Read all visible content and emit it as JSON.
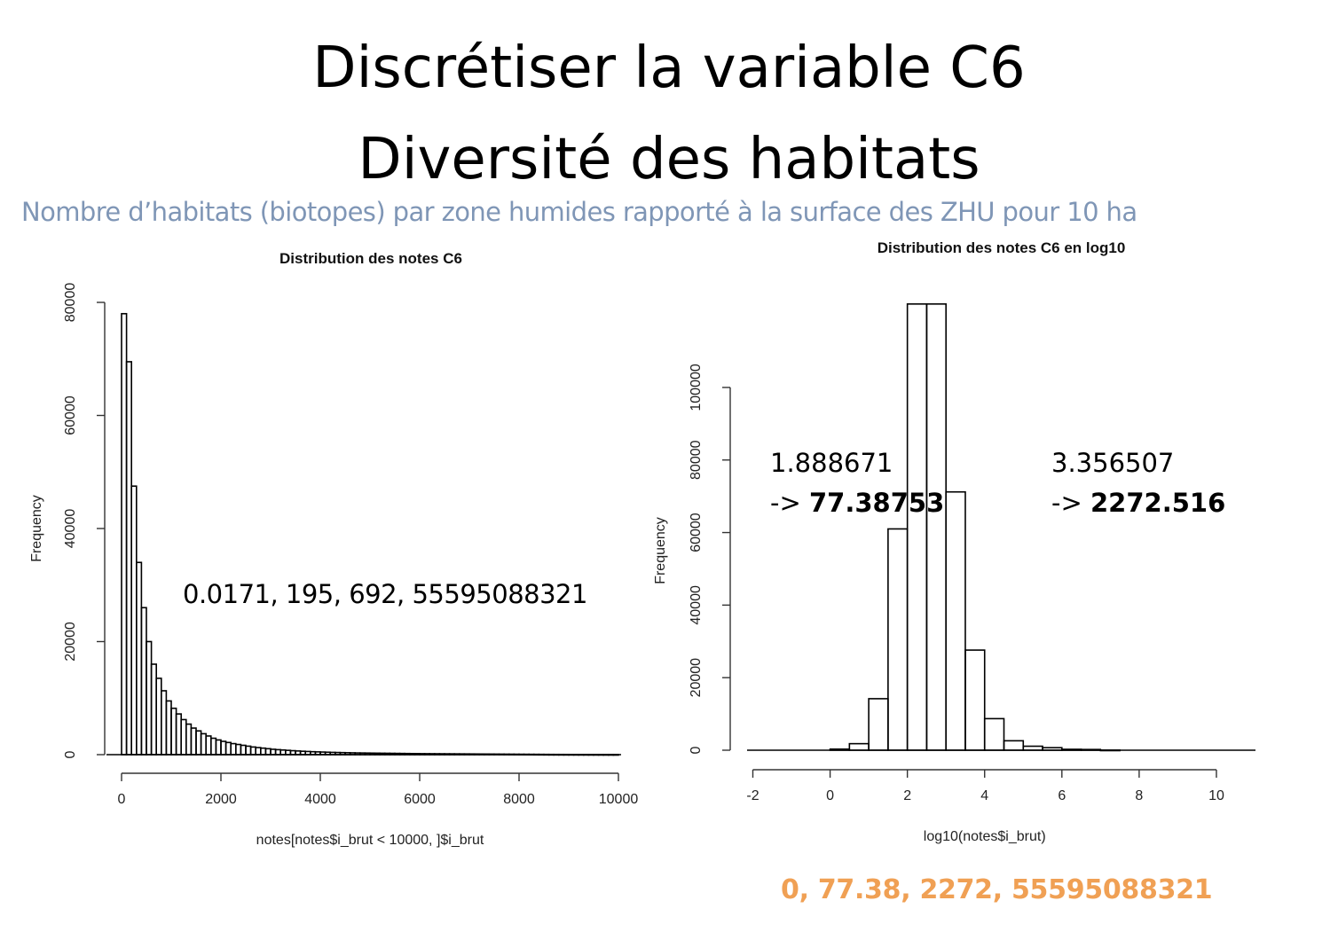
{
  "slide": {
    "title_line1": "Discrétiser la variable C6",
    "title_line2": "Diversité des habitats",
    "subtitle": "Nombre d’habitats (biotopes) par zone humides rapporté à la surface des ZHU pour 10 ha"
  },
  "annotations": {
    "raw_quantiles": "0.0171, 195, 692, 55595088321",
    "cut1_log": "1.888671",
    "cut1_arrow": "-> ",
    "cut1_value": "77.38753",
    "cut2_log": "3.356507",
    "cut2_arrow": "-> ",
    "cut2_value": "2272.516",
    "log_summary": "0, 77.38, 2272, 55595088321",
    "log_summary_color": "#f0a054"
  },
  "chart_data": [
    {
      "type": "bar",
      "title": "Distribution des notes C6",
      "xlabel": "notes[notes$i_brut < 10000, ]$i_brut",
      "ylabel": "Frequency",
      "xlim": [
        0,
        10000
      ],
      "ylim": [
        0,
        80000
      ],
      "x_ticks": [
        0,
        2000,
        4000,
        6000,
        8000,
        10000
      ],
      "y_ticks": [
        0,
        20000,
        40000,
        60000,
        80000
      ],
      "bin_width": 100,
      "values": [
        78000,
        69500,
        47500,
        34000,
        26000,
        20000,
        16000,
        13500,
        11300,
        9500,
        8200,
        7200,
        6200,
        5400,
        4700,
        4200,
        3700,
        3300,
        2900,
        2600,
        2350,
        2150,
        1950,
        1800,
        1650,
        1500,
        1350,
        1250,
        1150,
        1050,
        950,
        880,
        820,
        760,
        700,
        650,
        600,
        560,
        520,
        490,
        460,
        430,
        400,
        380,
        360,
        340,
        320,
        300,
        290,
        280,
        270,
        260,
        250,
        240,
        230,
        220,
        210,
        200,
        190,
        180,
        170,
        165,
        160,
        155,
        150,
        145,
        140,
        135,
        130,
        125,
        120,
        115,
        110,
        105,
        100,
        95,
        90,
        85,
        80,
        75,
        70,
        65,
        60,
        55,
        50,
        45,
        40,
        38,
        36,
        34,
        32,
        30,
        28,
        26,
        24,
        22,
        20,
        18,
        16,
        14
      ]
    },
    {
      "type": "bar",
      "title": "Distribution des notes C6 en log10",
      "xlabel": "log10(notes$i_brut)",
      "ylabel": "Frequency",
      "xlim": [
        -2,
        11
      ],
      "ylim": [
        0,
        110000
      ],
      "x_ticks": [
        -2,
        0,
        2,
        4,
        6,
        8,
        10
      ],
      "y_ticks": [
        0,
        20000,
        40000,
        60000,
        80000,
        100000
      ],
      "bin_edges": [
        -2,
        -1.5,
        -1,
        -0.5,
        0,
        0.5,
        1,
        1.5,
        2,
        2.5,
        3,
        3.5,
        4,
        4.5,
        5,
        5.5,
        6,
        6.5,
        7,
        7.5,
        8,
        8.5,
        9,
        9.5,
        10,
        10.5,
        11
      ],
      "values": [
        0,
        0,
        0,
        0,
        300,
        1800,
        14200,
        61000,
        123000,
        123000,
        71200,
        27600,
        8700,
        2600,
        1100,
        700,
        250,
        200,
        30,
        0,
        0,
        0,
        0,
        0,
        0,
        0
      ]
    }
  ]
}
